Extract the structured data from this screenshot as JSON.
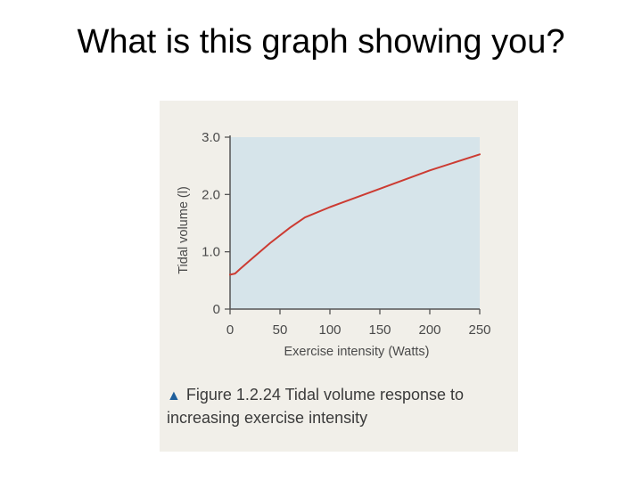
{
  "slide": {
    "title": "What is this graph showing you?"
  },
  "figure": {
    "caption_label": "Figure 1.2.24",
    "caption_text": "Tidal volume response to increasing exercise intensity"
  },
  "colors": {
    "plot_background": "#d6e4ea",
    "line": "#cc3b32",
    "axis": "#555555",
    "triangle": "#1f5f9c"
  },
  "chart_data": {
    "type": "line",
    "xlabel": "Exercise intensity (Watts)",
    "ylabel": "Tidal volume (l)",
    "xlim": [
      0,
      250
    ],
    "ylim": [
      0,
      3.0
    ],
    "x_ticks": [
      0,
      50,
      100,
      150,
      200,
      250
    ],
    "y_ticks": [
      0,
      1.0,
      2.0,
      3.0
    ],
    "x_tick_labels": [
      "0",
      "50",
      "100",
      "150",
      "200",
      "250"
    ],
    "y_tick_labels": [
      "0",
      "1.0",
      "2.0",
      "3.0"
    ],
    "grid": false,
    "series": [
      {
        "x": [
          0,
          5,
          10,
          20,
          40,
          60,
          75,
          100,
          150,
          200,
          250
        ],
        "y": [
          0.6,
          0.62,
          0.7,
          0.85,
          1.15,
          1.42,
          1.6,
          1.78,
          2.1,
          2.42,
          2.7
        ]
      }
    ]
  }
}
